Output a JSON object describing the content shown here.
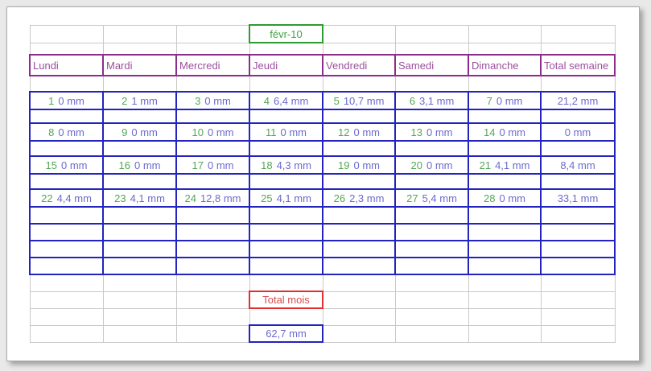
{
  "calendar": {
    "month_label": "févr-10",
    "unit": "mm",
    "day_headers": [
      "Lundi",
      "Mardi",
      "Mercredi",
      "Jeudi",
      "Vendredi",
      "Samedi",
      "Dimanche",
      "Total semaine"
    ],
    "weeks": [
      {
        "days": [
          {
            "num": "1",
            "val": "0 mm"
          },
          {
            "num": "2",
            "val": "1 mm"
          },
          {
            "num": "3",
            "val": "0 mm"
          },
          {
            "num": "4",
            "val": "6,4 mm"
          },
          {
            "num": "5",
            "val": "10,7 mm"
          },
          {
            "num": "6",
            "val": "3,1 mm"
          },
          {
            "num": "7",
            "val": "0 mm"
          }
        ],
        "total": "21,2 mm"
      },
      {
        "days": [
          {
            "num": "8",
            "val": "0 mm"
          },
          {
            "num": "9",
            "val": "0 mm"
          },
          {
            "num": "10",
            "val": "0 mm"
          },
          {
            "num": "11",
            "val": "0 mm"
          },
          {
            "num": "12",
            "val": "0 mm"
          },
          {
            "num": "13",
            "val": "0 mm"
          },
          {
            "num": "14",
            "val": "0 mm"
          }
        ],
        "total": "0 mm"
      },
      {
        "days": [
          {
            "num": "15",
            "val": "0 mm"
          },
          {
            "num": "16",
            "val": "0 mm"
          },
          {
            "num": "17",
            "val": "0 mm"
          },
          {
            "num": "18",
            "val": "4,3 mm"
          },
          {
            "num": "19",
            "val": "0 mm"
          },
          {
            "num": "20",
            "val": "0 mm"
          },
          {
            "num": "21",
            "val": "4,1 mm"
          }
        ],
        "total": "8,4 mm"
      },
      {
        "days": [
          {
            "num": "22",
            "val": "4,4 mm"
          },
          {
            "num": "23",
            "val": "4,1 mm"
          },
          {
            "num": "24",
            "val": "12,8 mm"
          },
          {
            "num": "25",
            "val": "4,1 mm"
          },
          {
            "num": "26",
            "val": "2,3 mm"
          },
          {
            "num": "27",
            "val": "5,4 mm"
          },
          {
            "num": "28",
            "val": "0 mm"
          }
        ],
        "total": "33,1 mm"
      }
    ],
    "month_total_label": "Total mois",
    "month_total_value": "62,7 mm"
  },
  "colors": {
    "green": "#2e9b2e",
    "green_text": "#3fa53f",
    "purple": "#8b2d8b",
    "purple_text": "#9c4f9c",
    "blue": "#2323bd",
    "blue_text": "#6b6bce",
    "day_green": "#55a755",
    "red": "#e03030",
    "red_text": "#d94f4f",
    "grid": "#c9c9c9"
  }
}
